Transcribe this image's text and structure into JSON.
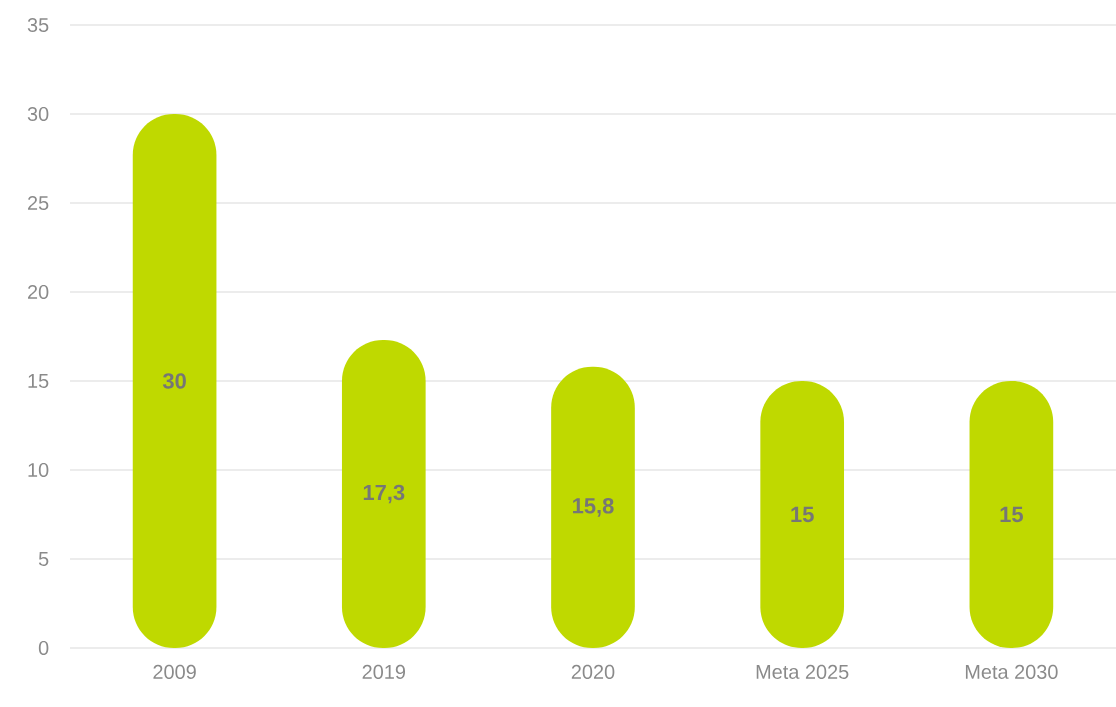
{
  "chart_data": {
    "type": "bar",
    "categories": [
      "2009",
      "2019",
      "2020",
      "Meta 2025",
      "Meta 2030"
    ],
    "values": [
      30,
      17.3,
      15.8,
      15,
      15
    ],
    "value_labels": [
      "30",
      "17,3",
      "15,8",
      "15",
      "15"
    ],
    "color": "#bfd900",
    "ylim": [
      0,
      35
    ],
    "yticks": [
      0,
      5,
      10,
      15,
      20,
      25,
      30,
      35
    ],
    "grid": "y"
  }
}
